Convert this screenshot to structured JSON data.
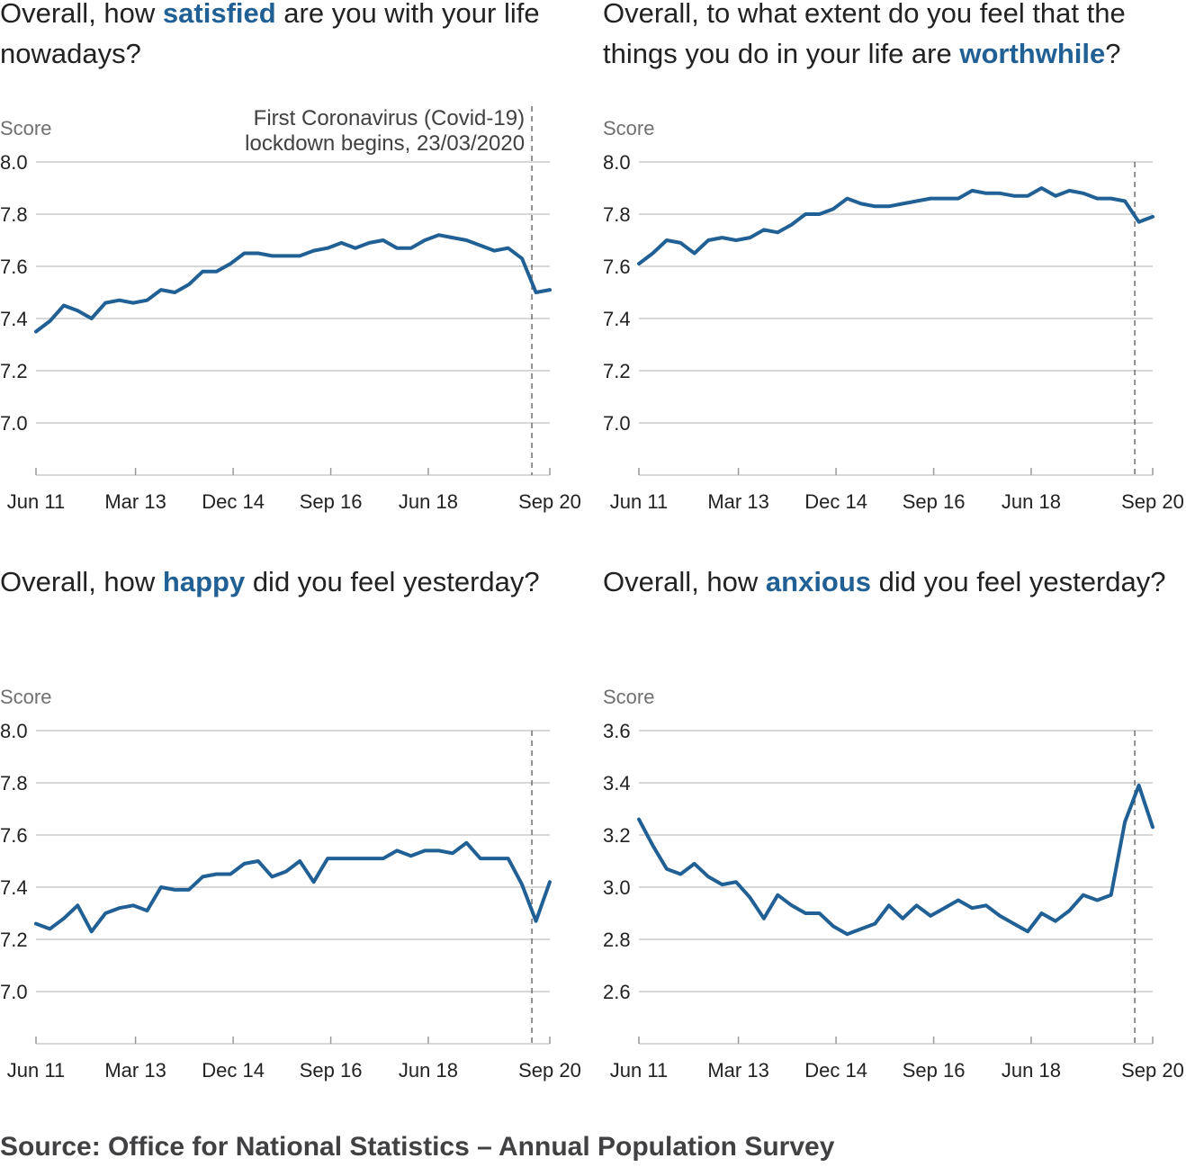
{
  "source": "Source: Office for National Statistics – Annual Population Survey",
  "colors": {
    "line": "#206095",
    "grid": "#cccccc",
    "text": "#222222",
    "muted": "#707070",
    "annotation": "#414042"
  },
  "chart_data": [
    {
      "type": "line",
      "title": {
        "before": "Overall, how ",
        "highlight": "satisfied",
        "after": " are you with your life nowadays?"
      },
      "ylabel": "Score",
      "ylim": [
        6.8,
        8.0
      ],
      "yticks": [
        "8.0",
        "7.8",
        "7.6",
        "7.4",
        "7.2",
        "7.0"
      ],
      "xlim": [
        0,
        43
      ],
      "xticks": [
        {
          "label": "Jun 11",
          "x": 0
        },
        {
          "label": "Mar 13",
          "x": 8.33
        },
        {
          "label": "Dec 14",
          "x": 16.5
        },
        {
          "label": "Sep 16",
          "x": 24.67
        },
        {
          "label": "Jun 18",
          "x": 32.83
        },
        {
          "label": "Sep 20",
          "x": 43
        }
      ],
      "marker": {
        "x": 41.5,
        "label": [
          "First Coronavirus (Covid-19)",
          "lockdown begins, 23/03/2020"
        ]
      },
      "series": [
        {
          "values": [
            7.35,
            7.39,
            7.45,
            7.43,
            7.4,
            7.46,
            7.47,
            7.46,
            7.47,
            7.51,
            7.5,
            7.53,
            7.58,
            7.58,
            7.61,
            7.65,
            7.65,
            7.64,
            7.64,
            7.64,
            7.66,
            7.67,
            7.69,
            7.67,
            7.69,
            7.7,
            7.67,
            7.67,
            7.7,
            7.72,
            7.71,
            7.7,
            7.68,
            7.66,
            7.67,
            7.63,
            7.5,
            7.51
          ]
        }
      ]
    },
    {
      "type": "line",
      "title": {
        "before": "Overall, to what extent do you feel that the things you do in your life are ",
        "highlight": "worthwhile",
        "after": "?"
      },
      "ylabel": "Score",
      "ylim": [
        6.8,
        8.0
      ],
      "yticks": [
        "8.0",
        "7.8",
        "7.6",
        "7.4",
        "7.2",
        "7.0"
      ],
      "xlim": [
        0,
        43
      ],
      "xticks": [
        {
          "label": "Jun 11",
          "x": 0
        },
        {
          "label": "Mar 13",
          "x": 8.33
        },
        {
          "label": "Dec 14",
          "x": 16.5
        },
        {
          "label": "Sep 16",
          "x": 24.67
        },
        {
          "label": "Jun 18",
          "x": 32.83
        },
        {
          "label": "Sep 20",
          "x": 43
        }
      ],
      "marker": {
        "x": 41.5
      },
      "series": [
        {
          "values": [
            7.61,
            7.65,
            7.7,
            7.69,
            7.65,
            7.7,
            7.71,
            7.7,
            7.71,
            7.74,
            7.73,
            7.76,
            7.8,
            7.8,
            7.82,
            7.86,
            7.84,
            7.83,
            7.83,
            7.84,
            7.85,
            7.86,
            7.86,
            7.86,
            7.89,
            7.88,
            7.88,
            7.87,
            7.87,
            7.9,
            7.87,
            7.89,
            7.88,
            7.86,
            7.86,
            7.85,
            7.77,
            7.79
          ]
        }
      ]
    },
    {
      "type": "line",
      "title": {
        "before": "Overall, how ",
        "highlight": "happy",
        "after": " did you feel yesterday?"
      },
      "ylabel": "Score",
      "ylim": [
        6.8,
        8.0
      ],
      "yticks": [
        "8.0",
        "7.8",
        "7.6",
        "7.4",
        "7.2",
        "7.0"
      ],
      "xlim": [
        0,
        43
      ],
      "xticks": [
        {
          "label": "Jun 11",
          "x": 0
        },
        {
          "label": "Mar 13",
          "x": 8.33
        },
        {
          "label": "Dec 14",
          "x": 16.5
        },
        {
          "label": "Sep 16",
          "x": 24.67
        },
        {
          "label": "Jun 18",
          "x": 32.83
        },
        {
          "label": "Sep 20",
          "x": 43
        }
      ],
      "marker": {
        "x": 41.5
      },
      "series": [
        {
          "values": [
            7.26,
            7.24,
            7.28,
            7.33,
            7.23,
            7.3,
            7.32,
            7.33,
            7.31,
            7.4,
            7.39,
            7.39,
            7.44,
            7.45,
            7.45,
            7.49,
            7.5,
            7.44,
            7.46,
            7.5,
            7.42,
            7.51,
            7.51,
            7.51,
            7.51,
            7.51,
            7.54,
            7.52,
            7.54,
            7.54,
            7.53,
            7.57,
            7.51,
            7.51,
            7.51,
            7.41,
            7.27,
            7.42
          ]
        }
      ]
    },
    {
      "type": "line",
      "title": {
        "before": "Overall, how ",
        "highlight": "anxious",
        "after": " did you feel yesterday?"
      },
      "ylabel": "Score",
      "ylim": [
        2.4,
        3.6
      ],
      "yticks": [
        "3.6",
        "3.4",
        "3.2",
        "3.0",
        "2.8",
        "2.6"
      ],
      "xlim": [
        0,
        43
      ],
      "xticks": [
        {
          "label": "Jun 11",
          "x": 0
        },
        {
          "label": "Mar 13",
          "x": 8.33
        },
        {
          "label": "Dec 14",
          "x": 16.5
        },
        {
          "label": "Sep 16",
          "x": 24.67
        },
        {
          "label": "Jun 18",
          "x": 32.83
        },
        {
          "label": "Sep 20",
          "x": 43
        }
      ],
      "marker": {
        "x": 41.5
      },
      "series": [
        {
          "values": [
            3.26,
            3.16,
            3.07,
            3.05,
            3.09,
            3.04,
            3.01,
            3.02,
            2.96,
            2.88,
            2.97,
            2.93,
            2.9,
            2.9,
            2.85,
            2.82,
            2.84,
            2.86,
            2.93,
            2.88,
            2.93,
            2.89,
            2.92,
            2.95,
            2.92,
            2.93,
            2.89,
            2.86,
            2.83,
            2.9,
            2.87,
            2.91,
            2.97,
            2.95,
            2.97,
            3.25,
            3.39,
            3.23
          ]
        }
      ]
    }
  ]
}
